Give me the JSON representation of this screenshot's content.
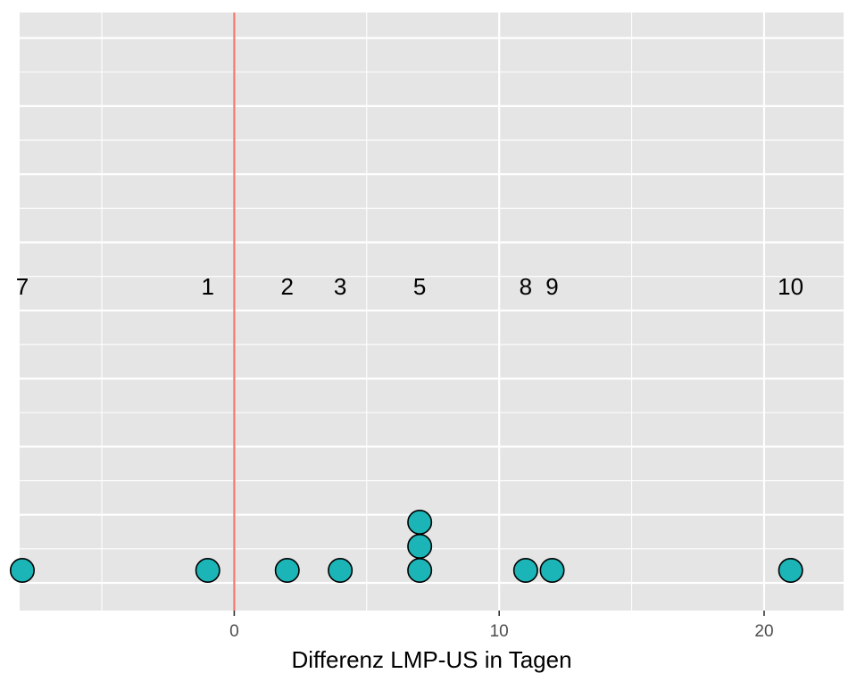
{
  "chart_data": {
    "type": "dotplot",
    "xlabel": "Differenz LMP-US in Tagen",
    "ylabel": "",
    "xlim": [
      -8.1,
      23
    ],
    "x_ticks": [
      0,
      10,
      20
    ],
    "x_tick_labels": [
      "0",
      "10",
      "20"
    ],
    "reference_line": {
      "x": 0,
      "color": "#F8766D"
    },
    "points": [
      {
        "x": -8,
        "stack": 1
      },
      {
        "x": -1,
        "stack": 1
      },
      {
        "x": 2,
        "stack": 1
      },
      {
        "x": 4,
        "stack": 1
      },
      {
        "x": 7,
        "stack": 1
      },
      {
        "x": 7,
        "stack": 2
      },
      {
        "x": 7,
        "stack": 3
      },
      {
        "x": 11,
        "stack": 1
      },
      {
        "x": 12,
        "stack": 1
      },
      {
        "x": 21,
        "stack": 1
      }
    ],
    "labels": [
      {
        "x": -8,
        "text": "7"
      },
      {
        "x": -1,
        "text": "1"
      },
      {
        "x": 2,
        "text": "2"
      },
      {
        "x": 4,
        "text": "3"
      },
      {
        "x": 7,
        "text": "5"
      },
      {
        "x": 11,
        "text": "8"
      },
      {
        "x": 12,
        "text": "9"
      },
      {
        "x": 21,
        "text": "10"
      }
    ],
    "point_fill": "#1CB5B7",
    "point_stroke": "#000000",
    "panel_background": "#E5E5E5",
    "grid_color": "#FFFFFF",
    "grid": true,
    "legend": "none"
  }
}
